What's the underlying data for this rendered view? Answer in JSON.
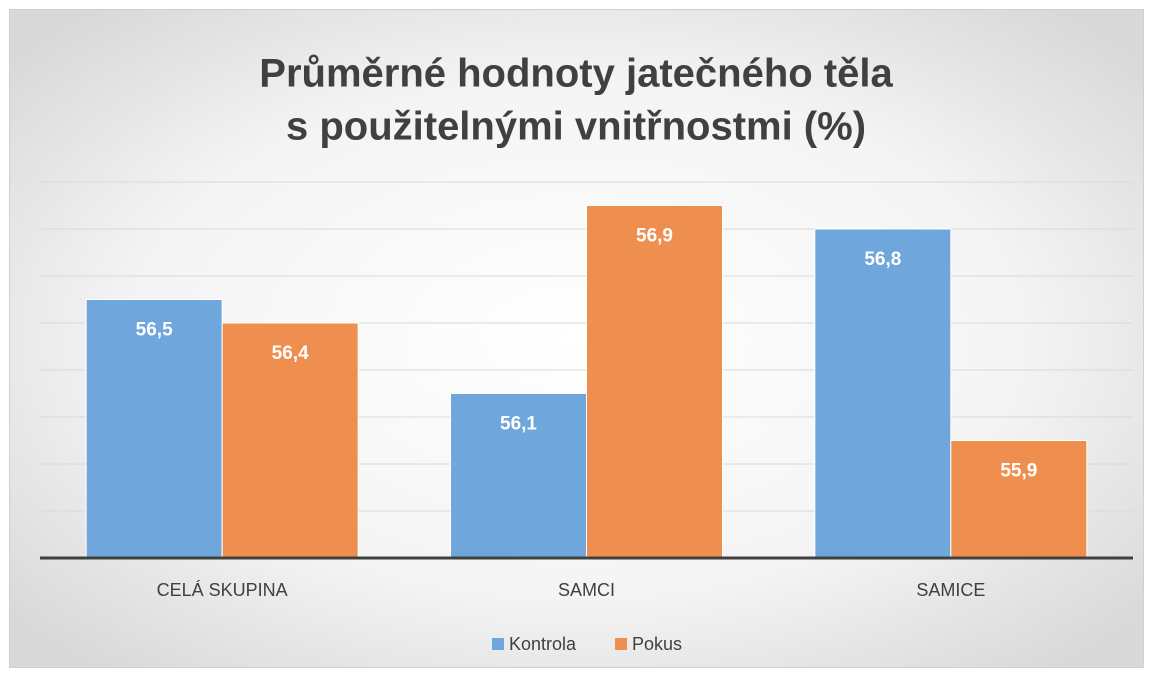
{
  "chart_data": {
    "type": "bar",
    "title": [
      "Průměrné hodnoty jatečného těla",
      "s použitelnými vnitřnostmi (%)"
    ],
    "categories": [
      "CELÁ SKUPINA",
      "SAMCI",
      "SAMICE"
    ],
    "series": [
      {
        "name": "Kontrola",
        "color": "#6fa6dc",
        "values": [
          56.5,
          56.1,
          56.8
        ],
        "value_labels": [
          "56,5",
          "56,1",
          "56,8"
        ]
      },
      {
        "name": "Pokus",
        "color": "#ef8f4f",
        "values": [
          56.4,
          56.9,
          55.9
        ],
        "value_labels": [
          "56,4",
          "56,9",
          "55,9"
        ]
      }
    ],
    "ylim": [
      55.4,
      57.0
    ],
    "yticks": [
      55.4,
      55.6,
      55.8,
      56.0,
      56.2,
      56.4,
      56.6,
      56.8,
      57.0
    ],
    "grid": true,
    "legend": "bottom"
  }
}
